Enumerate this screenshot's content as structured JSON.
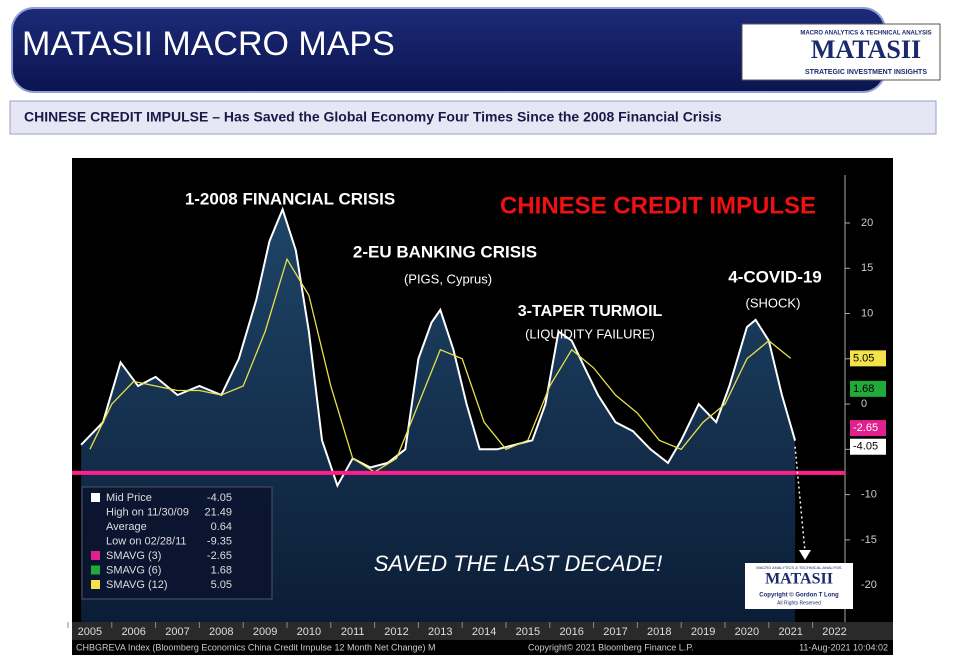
{
  "header": {
    "title": "MATASII MACRO MAPS",
    "subtitle": "CHINESE CREDIT IMPULSE – Has Saved the Global Economy Four Times Since the 2008 Financial Crisis",
    "logo": {
      "tagline": "MACRO ANALYTICS & TECHNICAL ANALYSIS",
      "name": "MATASII",
      "motto": "STRATEGIC INVESTMENT INSIGHTS"
    }
  },
  "chart_data": {
    "type": "line",
    "title": "CHINESE CREDIT IMPULSE",
    "annotations": [
      "1-2008 FINANCIAL CRISIS",
      "2-EU BANKING CRISIS",
      "(PIGS, Cyprus)",
      "3-TAPER TURMOIL",
      "(LIQUIDITY FAILURE)",
      "4-COVID-19",
      "(SHOCK)",
      "SAVED THE LAST DECADE!"
    ],
    "xlim": [
      2005.16,
      2022.74
    ],
    "ylim": [
      -24.4,
      25.3
    ],
    "xticks": [
      {
        "value": 2005.5,
        "label": "2005"
      },
      {
        "value": 2006.5,
        "label": "2006"
      },
      {
        "value": 2007.5,
        "label": "2007"
      },
      {
        "value": 2008.5,
        "label": "2008"
      },
      {
        "value": 2009.5,
        "label": "2009"
      },
      {
        "value": 2010.5,
        "label": "2010"
      },
      {
        "value": 2011.5,
        "label": "2011"
      },
      {
        "value": 2012.5,
        "label": "2012"
      },
      {
        "value": 2013.5,
        "label": "2013"
      },
      {
        "value": 2014.5,
        "label": "2014"
      },
      {
        "value": 2015.5,
        "label": "2015"
      },
      {
        "value": 2016.5,
        "label": "2016"
      },
      {
        "value": 2017.5,
        "label": "2017"
      },
      {
        "value": 2018.5,
        "label": "2018"
      },
      {
        "value": 2019.5,
        "label": "2019"
      },
      {
        "value": 2020.5,
        "label": "2020"
      },
      {
        "value": 2021.5,
        "label": "2021"
      },
      {
        "value": 2022.5,
        "label": "2022"
      }
    ],
    "yticks": [
      -20,
      -15,
      -10,
      -5,
      0,
      5,
      10,
      15,
      20
    ],
    "threshold": -7.6,
    "series": [
      {
        "name": "Mid Price",
        "color": "#ffffff",
        "x": [
          2005.3,
          2005.8,
          2006.2,
          2006.6,
          2007.0,
          2007.5,
          2008.0,
          2008.5,
          2008.9,
          2009.3,
          2009.6,
          2009.9,
          2010.2,
          2010.5,
          2010.8,
          2011.15,
          2011.5,
          2011.9,
          2012.3,
          2012.7,
          2013.0,
          2013.3,
          2013.5,
          2013.8,
          2014.1,
          2014.4,
          2014.8,
          2015.2,
          2015.6,
          2015.9,
          2016.2,
          2016.5,
          2016.8,
          2017.1,
          2017.5,
          2017.9,
          2018.3,
          2018.7,
          2019.0,
          2019.4,
          2019.8,
          2020.1,
          2020.5,
          2020.7,
          2021.0,
          2021.3,
          2021.6
        ],
        "values": [
          -4.5,
          -2,
          4.6,
          2,
          3,
          1,
          2,
          1,
          5,
          11.5,
          18,
          21.5,
          17,
          8,
          -4,
          -9,
          -6,
          -7,
          -6.5,
          -5,
          5,
          9,
          10.4,
          6,
          0,
          -5,
          -5,
          -4.5,
          -4,
          0,
          8,
          7,
          4,
          1,
          -2,
          -3,
          -5,
          -6.5,
          -4,
          0,
          -2,
          2,
          8.5,
          9.3,
          7,
          1,
          -4.05
        ]
      },
      {
        "name": "SMAVG (12)",
        "color": "#e6e04a",
        "x": [
          2005.5,
          2006.0,
          2006.5,
          2007.0,
          2007.5,
          2008.0,
          2008.5,
          2009.0,
          2009.5,
          2010.0,
          2010.5,
          2011.0,
          2011.5,
          2012.0,
          2012.5,
          2013.0,
          2013.5,
          2014.0,
          2014.5,
          2015.0,
          2015.5,
          2016.0,
          2016.5,
          2017.0,
          2017.5,
          2018.0,
          2018.5,
          2019.0,
          2019.5,
          2020.0,
          2020.5,
          2021.0,
          2021.5
        ],
        "values": [
          -5,
          0,
          2.5,
          2,
          1.5,
          1.5,
          1,
          2,
          8,
          16,
          12,
          2,
          -6,
          -7.5,
          -6,
          0,
          6,
          5,
          -2,
          -5,
          -4,
          2,
          6,
          4,
          1,
          -1,
          -4,
          -5,
          -2,
          0,
          5,
          7,
          5.05
        ]
      }
    ],
    "last_values": [
      {
        "value": 5.05,
        "color": "#f4e24a"
      },
      {
        "value": 1.68,
        "color": "#1faa3a"
      },
      {
        "value": -2.65,
        "color": "#e0208c"
      },
      {
        "value": -4.05,
        "color": "#ffffff"
      }
    ],
    "legend": [
      {
        "label": "Mid Price",
        "value": -4.05,
        "color": "#ffffff"
      },
      {
        "label": "High on 11/30/09",
        "value": 21.49
      },
      {
        "label": "Average",
        "value": 0.64
      },
      {
        "label": "Low on 02/28/11",
        "value": -9.35
      },
      {
        "label": "SMAVG (3)",
        "value": -2.65,
        "color": "#e0208c"
      },
      {
        "label": "SMAVG (6)",
        "value": 1.68,
        "color": "#1faa3a"
      },
      {
        "label": "SMAVG (12)",
        "value": 5.05,
        "color": "#f4e24a"
      }
    ],
    "footer": {
      "source": "CHBGREVA Index (Bloomberg Economics China Credit Impulse 12 Month Net Change)  M",
      "copyright": "Copyright© 2021 Bloomberg Finance L.P.",
      "timestamp": "11-Aug-2021 10:04:02"
    },
    "stamp": {
      "name": "MATASII",
      "line1": "MACRO ANALYTICS & TECHNICAL ANALYSIS",
      "line2": "Copyright © Gordon T Long",
      "line3": "All Rights Reserved"
    }
  }
}
